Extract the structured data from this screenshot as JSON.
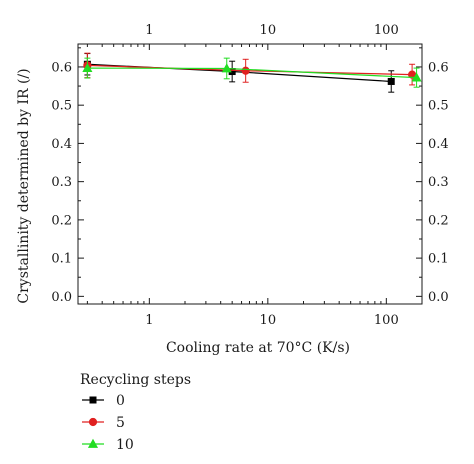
{
  "chart_data": {
    "type": "scatter",
    "xlabel": "Cooling rate at 70°C (K/s)",
    "ylabel": "Crystallinity determined by IR (/)",
    "xscale": "log",
    "xlim": [
      0.25,
      200
    ],
    "ylim": [
      -0.02,
      0.66
    ],
    "x_ticks_major": [
      1,
      10,
      100
    ],
    "x_tick_labels": [
      "1",
      "10",
      "100"
    ],
    "y_ticks": [
      0.0,
      0.1,
      0.2,
      0.3,
      0.4,
      0.5,
      0.6
    ],
    "y_tick_labels": [
      "0.0",
      "0.1",
      "0.2",
      "0.3",
      "0.4",
      "0.5",
      "0.6"
    ],
    "top_axis_labels": true,
    "right_axis_labels": true,
    "grid": false,
    "legend": {
      "title": "Recycling steps",
      "placement": "bottom-left, outside plot"
    },
    "series": [
      {
        "name": "0",
        "color": "#000000",
        "marker": "square",
        "x": [
          0.3,
          5,
          110
        ],
        "y": [
          0.607,
          0.588,
          0.562
        ],
        "err": [
          0.028,
          0.027,
          0.028
        ]
      },
      {
        "name": "5",
        "color": "#e02020",
        "marker": "circle",
        "x": [
          0.3,
          6.5,
          165
        ],
        "y": [
          0.604,
          0.59,
          0.58
        ],
        "err": [
          0.032,
          0.03,
          0.027
        ]
      },
      {
        "name": "10",
        "color": "#22dd22",
        "marker": "triangle",
        "x": [
          0.3,
          4.5,
          180
        ],
        "y": [
          0.597,
          0.596,
          0.572
        ],
        "err": [
          0.026,
          0.027,
          0.025
        ]
      }
    ]
  }
}
